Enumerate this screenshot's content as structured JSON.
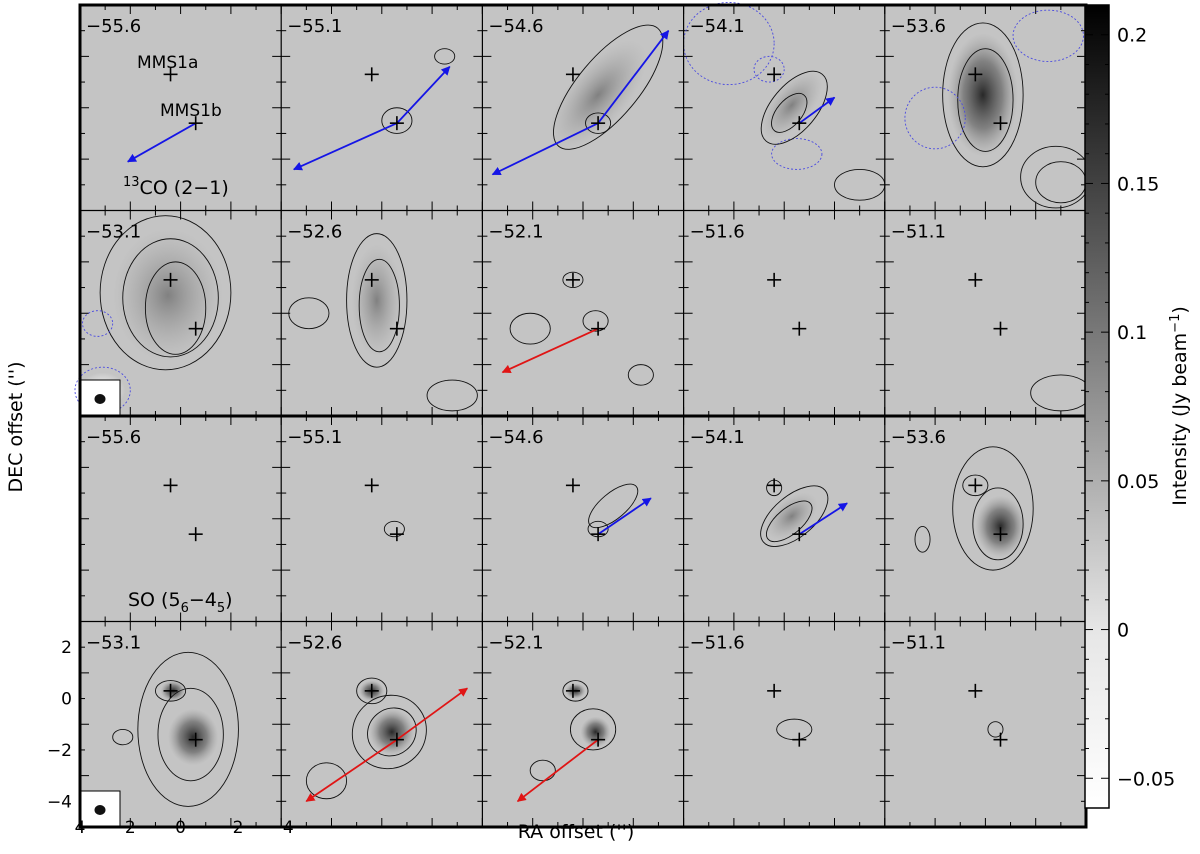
{
  "chart_data": {
    "type": "heatmap",
    "description_free": true,
    "layout": {
      "rows": 4,
      "cols": 5
    },
    "molecules": [
      {
        "name_main": "CO (2−1)",
        "name_sup": "13",
        "label_prefix": "",
        "velocities": [
          "−55.6",
          "−55.1",
          "−54.6",
          "−54.1",
          "−53.6",
          "−53.1",
          "−52.6",
          "−52.1",
          "−51.6",
          "−51.1"
        ]
      },
      {
        "name_main": "SO (5",
        "name_sub1": "6",
        "name_mid": "−4",
        "name_sub2": "5",
        "name_end": ")",
        "velocities": [
          "−55.6",
          "−55.1",
          "−54.6",
          "−54.1",
          "−53.6",
          "−53.1",
          "−52.6",
          "−52.1",
          "−51.6",
          "−51.1"
        ]
      }
    ],
    "sources": [
      {
        "name": "MMS1a",
        "ra": 0.4,
        "dec": 0.3
      },
      {
        "name": "MMS1b",
        "ra": -0.6,
        "dec": -1.6
      }
    ],
    "xlabel": "RA offset ('')",
    "ylabel": "DEC offset ('')",
    "xlim": [
      4,
      -4
    ],
    "ylim": [
      -5,
      3
    ],
    "xticks": [
      4,
      2,
      0,
      -2,
      -4
    ],
    "yticks": [
      2,
      0,
      -2,
      -4
    ],
    "xtick_labels": [
      "4",
      "2",
      "0",
      "−2",
      "−4"
    ],
    "ytick_labels": [
      "2",
      "0",
      "−2",
      "−4"
    ],
    "colorbar": {
      "label": "Intensity (Jy beam",
      "label_sup": "−1",
      "label_end": ")",
      "vmin": -0.06,
      "vmax": 0.21,
      "ticks": [
        0.2,
        0.15,
        0.1,
        0.05,
        0,
        -0.05
      ],
      "tick_labels": [
        "0.2",
        "0.15",
        "0.1",
        "0.05",
        "0",
        "−0.05"
      ]
    },
    "arrow_colors": {
      "blue": "#1515e6",
      "red": "#e01515"
    },
    "background_gray": "#c4c4c4"
  }
}
